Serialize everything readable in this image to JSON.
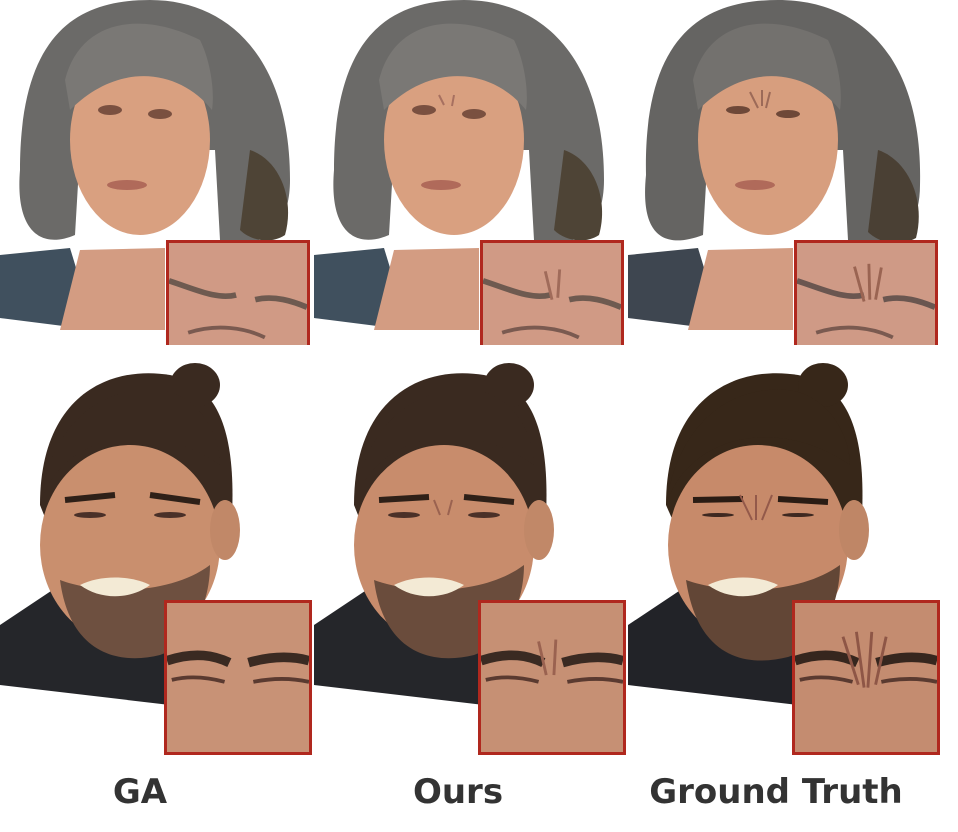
{
  "columns": [
    {
      "label": "GA"
    },
    {
      "label": "Ours"
    },
    {
      "label": "Ground Truth"
    }
  ],
  "rows": [
    {
      "subject": "woman-grey-hair"
    },
    {
      "subject": "man-beard-squint"
    }
  ],
  "colors": {
    "inset_border": "#b0281e",
    "label_text": "#333333",
    "background": "#ffffff"
  }
}
